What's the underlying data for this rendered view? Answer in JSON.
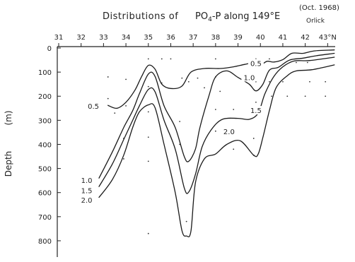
{
  "chart_data": {
    "type": "contour",
    "title_text": "Distributions of",
    "title_variable": "PO",
    "title_subscript": "4",
    "title_rest": "-P along 149°E",
    "date_note": "(Oct. 1968)",
    "author_note": "Orlick",
    "x_ticks": [
      {
        "value": 31,
        "label": "31"
      },
      {
        "value": 32,
        "label": "32"
      },
      {
        "value": 33,
        "label": "33"
      },
      {
        "value": 34,
        "label": "34"
      },
      {
        "value": 35,
        "label": "35"
      },
      {
        "value": 36,
        "label": "36"
      },
      {
        "value": 37,
        "label": "37"
      },
      {
        "value": 38,
        "label": "38"
      },
      {
        "value": 39,
        "label": "39"
      },
      {
        "value": 40,
        "label": "40"
      },
      {
        "value": 41,
        "label": "41"
      },
      {
        "value": 42,
        "label": "42"
      },
      {
        "value": 43,
        "label": "43°N"
      }
    ],
    "y_ticks": [
      {
        "value": 0,
        "label": "0"
      },
      {
        "value": 100,
        "label": "100"
      },
      {
        "value": 200,
        "label": "200"
      },
      {
        "value": 300,
        "label": "300"
      },
      {
        "value": 400,
        "label": "400"
      },
      {
        "value": 500,
        "label": "500"
      },
      {
        "value": 600,
        "label": "600"
      },
      {
        "value": 700,
        "label": "700"
      },
      {
        "value": 800,
        "label": "800"
      }
    ],
    "xlim": [
      31,
      43.4
    ],
    "ylim": [
      0,
      850
    ],
    "y_inverted": true,
    "ylabel": "Depth",
    "yunit": "(m)",
    "contours": [
      {
        "level": "0.5",
        "points": [
          [
            33.2,
            238
          ],
          [
            33.6,
            250
          ],
          [
            34.0,
            225
          ],
          [
            34.4,
            175
          ],
          [
            34.7,
            118
          ],
          [
            35.0,
            72
          ],
          [
            35.3,
            88
          ],
          [
            35.6,
            150
          ],
          [
            36.0,
            168
          ],
          [
            36.5,
            158
          ],
          [
            36.9,
            100
          ],
          [
            37.5,
            85
          ],
          [
            38.2,
            85
          ],
          [
            38.8,
            78
          ],
          [
            39.3,
            68
          ],
          [
            39.7,
            62
          ],
          [
            40.0,
            70
          ],
          [
            40.3,
            55
          ],
          [
            40.6,
            58
          ],
          [
            41.0,
            48
          ],
          [
            41.4,
            22
          ],
          [
            41.9,
            22
          ],
          [
            42.4,
            12
          ],
          [
            43.3,
            8
          ]
        ],
        "label_pos": [
          39.8,
          72
        ]
      },
      {
        "level": "1.0",
        "points": [
          [
            32.8,
            540
          ],
          [
            33.4,
            430
          ],
          [
            33.9,
            330
          ],
          [
            34.3,
            260
          ],
          [
            34.6,
            190
          ],
          [
            35.0,
            108
          ],
          [
            35.3,
            118
          ],
          [
            35.7,
            240
          ],
          [
            36.2,
            330
          ],
          [
            36.6,
            450
          ],
          [
            36.8,
            470
          ],
          [
            37.1,
            420
          ],
          [
            37.3,
            330
          ],
          [
            37.7,
            200
          ],
          [
            38.0,
            120
          ],
          [
            38.5,
            95
          ],
          [
            39.0,
            122
          ],
          [
            39.5,
            150
          ],
          [
            39.8,
            178
          ],
          [
            40.1,
            152
          ],
          [
            40.4,
            92
          ],
          [
            40.8,
            80
          ],
          [
            41.3,
            50
          ],
          [
            41.9,
            42
          ],
          [
            42.5,
            32
          ],
          [
            43.3,
            22
          ]
        ],
        "label_pos": [
          39.5,
          130
        ]
      },
      {
        "level": "1.5",
        "points": [
          [
            32.8,
            575
          ],
          [
            33.4,
            480
          ],
          [
            33.9,
            380
          ],
          [
            34.3,
            300
          ],
          [
            34.6,
            240
          ],
          [
            35.0,
            172
          ],
          [
            35.3,
            182
          ],
          [
            35.7,
            300
          ],
          [
            36.2,
            420
          ],
          [
            36.6,
            580
          ],
          [
            36.8,
            598
          ],
          [
            37.1,
            525
          ],
          [
            37.4,
            410
          ],
          [
            37.8,
            340
          ],
          [
            38.3,
            296
          ],
          [
            39.0,
            292
          ],
          [
            39.5,
            296
          ],
          [
            39.9,
            270
          ],
          [
            40.2,
            190
          ],
          [
            40.6,
            118
          ],
          [
            41.0,
            78
          ],
          [
            41.5,
            54
          ],
          [
            42.2,
            52
          ],
          [
            43.3,
            38
          ]
        ],
        "label_pos": [
          39.8,
          267
        ]
      },
      {
        "level": "2.0",
        "points": [
          [
            32.8,
            620
          ],
          [
            33.4,
            545
          ],
          [
            33.9,
            445
          ],
          [
            34.3,
            330
          ],
          [
            34.6,
            265
          ],
          [
            35.0,
            236
          ],
          [
            35.3,
            248
          ],
          [
            35.7,
            400
          ],
          [
            36.2,
            600
          ],
          [
            36.5,
            758
          ],
          [
            36.7,
            780
          ],
          [
            36.9,
            760
          ],
          [
            37.1,
            560
          ],
          [
            37.5,
            460
          ],
          [
            38.0,
            440
          ],
          [
            38.5,
            400
          ],
          [
            39.1,
            385
          ],
          [
            39.7,
            445
          ],
          [
            39.9,
            440
          ],
          [
            40.1,
            375
          ],
          [
            40.4,
            260
          ],
          [
            40.7,
            165
          ],
          [
            41.2,
            115
          ],
          [
            41.6,
            95
          ],
          [
            42.3,
            90
          ],
          [
            43.3,
            70
          ]
        ],
        "label_pos": [
          38.6,
          355
        ]
      }
    ],
    "left_labels": [
      {
        "text": "0.5",
        "x": 32.8,
        "depth": 240
      },
      {
        "text": "1.0",
        "x": 32.5,
        "depth": 548
      },
      {
        "text": "1.5",
        "x": 32.5,
        "depth": 590
      },
      {
        "text": "2.0",
        "x": 32.5,
        "depth": 630
      }
    ],
    "stations": [
      [
        33.2,
        120
      ],
      [
        33.2,
        210
      ],
      [
        33.5,
        270
      ],
      [
        34.0,
        130
      ],
      [
        34.0,
        240
      ],
      [
        33.9,
        375
      ],
      [
        33.9,
        460
      ],
      [
        35.0,
        45
      ],
      [
        35.0,
        160
      ],
      [
        35.0,
        265
      ],
      [
        35.0,
        370
      ],
      [
        35.0,
        470
      ],
      [
        35.0,
        770
      ],
      [
        35.6,
        45
      ],
      [
        35.6,
        145
      ],
      [
        36.0,
        45
      ],
      [
        36.5,
        125
      ],
      [
        36.8,
        140
      ],
      [
        36.4,
        305
      ],
      [
        36.4,
        400
      ],
      [
        36.7,
        720
      ],
      [
        37.2,
        125
      ],
      [
        37.5,
        165
      ],
      [
        38.0,
        45
      ],
      [
        38.0,
        120
      ],
      [
        38.2,
        180
      ],
      [
        38.0,
        255
      ],
      [
        38.0,
        345
      ],
      [
        38.8,
        255
      ],
      [
        38.8,
        345
      ],
      [
        38.8,
        420
      ],
      [
        39.8,
        45
      ],
      [
        39.8,
        140
      ],
      [
        39.8,
        225
      ],
      [
        39.7,
        375
      ],
      [
        39.7,
        445
      ],
      [
        40.4,
        45
      ],
      [
        40.4,
        140
      ],
      [
        40.5,
        200
      ],
      [
        41.0,
        140
      ],
      [
        41.2,
        200
      ],
      [
        41.6,
        60
      ],
      [
        42.1,
        60
      ],
      [
        42.2,
        140
      ],
      [
        42.0,
        200
      ],
      [
        42.9,
        140
      ],
      [
        42.9,
        200
      ]
    ]
  }
}
